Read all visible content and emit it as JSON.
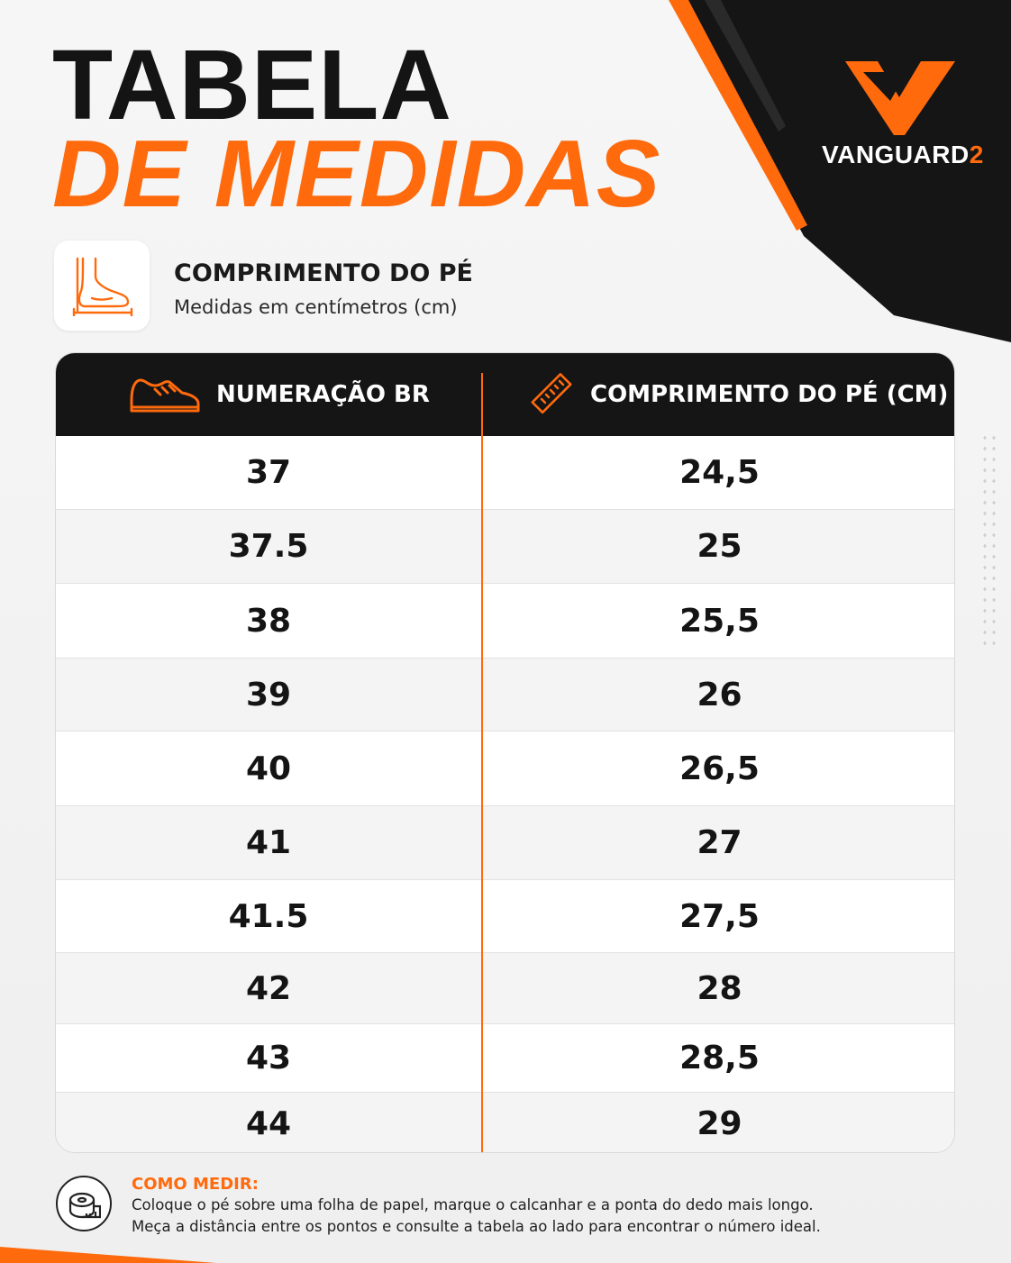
{
  "header": {
    "title_line1": "TABELA",
    "title_line2": "DE MEDIDAS"
  },
  "brand": {
    "name": "VANGUARD",
    "number": "2",
    "accent_color": "#ff6a0d",
    "dark_color": "#151515"
  },
  "section": {
    "icon": "foot-measure-icon",
    "title": "COMPRIMENTO DO PÉ",
    "subtitle": "Medidas em centímetros (cm)"
  },
  "table": {
    "headers": [
      {
        "icon": "sneaker-icon",
        "label": "NUMERAÇÃO BR"
      },
      {
        "icon": "ruler-icon",
        "label": "COMPRIMENTO DO PÉ (CM)"
      }
    ],
    "rows": [
      {
        "size": "37",
        "length": "24,5"
      },
      {
        "size": "37.5",
        "length": "25"
      },
      {
        "size": "38",
        "length": "25,5"
      },
      {
        "size": "39",
        "length": "26"
      },
      {
        "size": "40",
        "length": "26,5"
      },
      {
        "size": "41",
        "length": "27"
      },
      {
        "size": "41.5",
        "length": "27,5"
      },
      {
        "size": "42",
        "length": "28"
      },
      {
        "size": "43",
        "length": "28,5"
      },
      {
        "size": "44",
        "length": "29"
      }
    ]
  },
  "how_to": {
    "icon": "measuring-tape-icon",
    "title": "COMO MEDIR:",
    "line1": "Coloque o pé sobre uma folha de papel, marque o calcanhar e a ponta do dedo mais longo.",
    "line2": "Meça a distância entre os pontos e consulte a tabela ao lado para encontrar o número ideal."
  }
}
